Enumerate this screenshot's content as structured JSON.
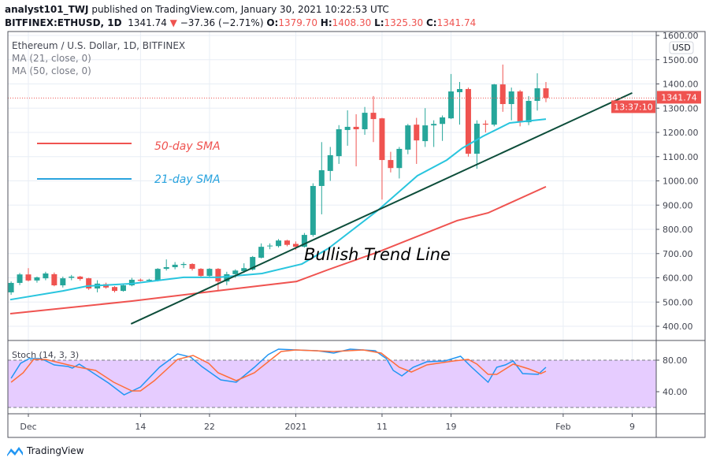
{
  "header": {
    "author": "analyst101_TWJ",
    "published": "published on TradingView.com, January 30, 2021 10:22:53 UTC",
    "symbol": "BITFINEX:ETHUSD, 1D",
    "last": "1341.74",
    "change": "−37.36 (−2.71%)",
    "o_label": "O:",
    "o": "1379.70",
    "h_label": "H:",
    "h": "1408.30",
    "l_label": "L:",
    "l": "1325.30",
    "c_label": "C:",
    "c": "1341.74"
  },
  "legend": {
    "title": "Ethereum / U.S. Dollar, 1D, BITFINEX",
    "ma1": "MA (21, close, 0)",
    "ma2": "MA (50, close, 0)",
    "sma50_label": "50-day SMA",
    "sma21_label": "21-day SMA",
    "stoch": "Stoch (14, 3, 3)"
  },
  "annotation": {
    "text": "Bullish Trend Line"
  },
  "price_axis": {
    "currency": "USD",
    "ticks": [
      "1600.00",
      "1500.00",
      "1400.00",
      "1300.00",
      "1200.00",
      "1100.00",
      "1000.00",
      "900.00",
      "800.00",
      "700.00",
      "600.00",
      "500.00",
      "400.00"
    ],
    "last_price": "1341.74",
    "countdown": "13:37:10"
  },
  "stoch_axis": {
    "ticks": [
      "80.00",
      "40.00"
    ]
  },
  "time_axis": {
    "ticks": [
      "Dec",
      "14",
      "22",
      "2021",
      "11",
      "19",
      "Feb",
      "9"
    ]
  },
  "footer": {
    "brand": "TradingView"
  },
  "colors": {
    "up": "#26a69a",
    "down": "#ef5350",
    "sma21": "#29c5de",
    "sma50": "#ef5350",
    "trend": "#0d4d3a",
    "k": "#2196f3",
    "d": "#ff6d3a",
    "band": "#e6ccff"
  },
  "chart_data": {
    "type": "candlestick",
    "title": "Ethereum / U.S. Dollar, 1D, BITFINEX",
    "first_candle_date": "2020-11-29",
    "x_unit": "days offset from 2020-12-01",
    "time_tick_days": [
      0,
      13,
      21,
      31,
      41,
      49,
      62,
      70
    ],
    "ylim": [
      380,
      1620
    ],
    "price_ticks": [
      1600,
      1500,
      1400,
      1300,
      1200,
      1100,
      1000,
      900,
      800,
      700,
      600,
      500,
      400
    ],
    "candles_ohlc": [
      [
        540,
        585,
        530,
        579
      ],
      [
        579,
        620,
        570,
        614
      ],
      [
        614,
        640,
        585,
        589
      ],
      [
        589,
        605,
        580,
        602
      ],
      [
        598,
        625,
        590,
        618
      ],
      [
        615,
        622,
        565,
        569
      ],
      [
        569,
        605,
        560,
        598
      ],
      [
        600,
        612,
        590,
        605
      ],
      [
        605,
        608,
        588,
        595
      ],
      [
        598,
        600,
        550,
        556
      ],
      [
        556,
        590,
        540,
        576
      ],
      [
        574,
        580,
        555,
        560
      ],
      [
        562,
        566,
        540,
        546
      ],
      [
        546,
        572,
        543,
        569
      ],
      [
        569,
        600,
        565,
        592
      ],
      [
        592,
        597,
        585,
        588
      ],
      [
        588,
        596,
        583,
        592
      ],
      [
        590,
        640,
        585,
        637
      ],
      [
        637,
        676,
        630,
        644
      ],
      [
        644,
        665,
        635,
        654
      ],
      [
        653,
        665,
        640,
        657
      ],
      [
        657,
        660,
        630,
        637
      ],
      [
        637,
        640,
        600,
        608
      ],
      [
        608,
        640,
        600,
        637
      ],
      [
        637,
        640,
        546,
        585
      ],
      [
        585,
        625,
        570,
        615
      ],
      [
        615,
        635,
        600,
        630
      ],
      [
        628,
        660,
        620,
        640
      ],
      [
        634,
        690,
        630,
        686
      ],
      [
        683,
        742,
        680,
        728
      ],
      [
        730,
        742,
        718,
        733
      ],
      [
        731,
        760,
        725,
        754
      ],
      [
        754,
        757,
        730,
        736
      ],
      [
        740,
        750,
        715,
        728
      ],
      [
        728,
        785,
        725,
        777
      ],
      [
        777,
        990,
        770,
        979
      ],
      [
        979,
        1160,
        862,
        1044
      ],
      [
        1041,
        1140,
        1000,
        1106
      ],
      [
        1102,
        1230,
        1070,
        1213
      ],
      [
        1210,
        1291,
        1145,
        1223
      ],
      [
        1223,
        1275,
        1060,
        1213
      ],
      [
        1213,
        1305,
        1190,
        1281
      ],
      [
        1281,
        1350,
        1160,
        1255
      ],
      [
        1258,
        1260,
        923,
        1086
      ],
      [
        1086,
        1120,
        1035,
        1053
      ],
      [
        1053,
        1140,
        1010,
        1132
      ],
      [
        1129,
        1235,
        1110,
        1229
      ],
      [
        1232,
        1260,
        1070,
        1167
      ],
      [
        1164,
        1300,
        1140,
        1229
      ],
      [
        1229,
        1250,
        1140,
        1235
      ],
      [
        1235,
        1270,
        1165,
        1262
      ],
      [
        1258,
        1441,
        1255,
        1369
      ],
      [
        1366,
        1408,
        1232,
        1379
      ],
      [
        1379,
        1385,
        1100,
        1112
      ],
      [
        1112,
        1250,
        1050,
        1236
      ],
      [
        1236,
        1250,
        1200,
        1232
      ],
      [
        1232,
        1400,
        1225,
        1398
      ],
      [
        1398,
        1480,
        1285,
        1317
      ],
      [
        1317,
        1385,
        1250,
        1369
      ],
      [
        1369,
        1375,
        1225,
        1242
      ],
      [
        1242,
        1350,
        1230,
        1330
      ],
      [
        1330,
        1444,
        1290,
        1382
      ],
      [
        1382,
        1408,
        1325,
        1342
      ]
    ],
    "sma21": [
      [
        -2.1,
        510
      ],
      [
        4,
        546
      ],
      [
        6.8,
        566
      ],
      [
        12,
        576
      ],
      [
        18,
        602
      ],
      [
        22,
        602
      ],
      [
        27.1,
        618
      ],
      [
        31.7,
        657
      ],
      [
        34.8,
        722
      ],
      [
        40.5,
        878
      ],
      [
        45.1,
        1021
      ],
      [
        48.5,
        1086
      ],
      [
        50.3,
        1135
      ],
      [
        52.7,
        1184
      ],
      [
        55.8,
        1239
      ],
      [
        60,
        1255
      ]
    ],
    "sma50": [
      [
        -2.1,
        452
      ],
      [
        12,
        504
      ],
      [
        21.1,
        543
      ],
      [
        31.1,
        585
      ],
      [
        34.8,
        634
      ],
      [
        40.5,
        706
      ],
      [
        49.7,
        836
      ],
      [
        53.3,
        868
      ],
      [
        60,
        976
      ]
    ],
    "trend_line": [
      [
        11.9,
        410
      ],
      [
        70,
        1363
      ]
    ],
    "stoch": {
      "ylim": [
        0,
        100
      ],
      "levels": [
        80,
        20
      ],
      "k": [
        [
          -2,
          57
        ],
        [
          -0.9,
          76
        ],
        [
          0.1,
          82
        ],
        [
          1.5,
          82
        ],
        [
          3,
          74
        ],
        [
          4.6,
          72
        ],
        [
          5.1,
          70
        ],
        [
          5.9,
          75
        ],
        [
          7.2,
          66
        ],
        [
          9.3,
          51
        ],
        [
          11.1,
          36
        ],
        [
          13,
          46
        ],
        [
          15.2,
          71
        ],
        [
          17.3,
          88
        ],
        [
          18.8,
          84
        ],
        [
          20.1,
          72
        ],
        [
          22.3,
          55
        ],
        [
          24.1,
          52
        ],
        [
          26.2,
          71
        ],
        [
          27.8,
          87
        ],
        [
          29,
          94
        ],
        [
          31,
          93
        ],
        [
          33.5,
          92
        ],
        [
          35.4,
          89
        ],
        [
          37.3,
          94
        ],
        [
          40.2,
          92
        ],
        [
          41.5,
          82
        ],
        [
          42.3,
          67
        ],
        [
          43.3,
          60
        ],
        [
          44.6,
          71
        ],
        [
          46.2,
          78
        ],
        [
          48.3,
          79
        ],
        [
          50.1,
          85
        ],
        [
          51.4,
          71
        ],
        [
          53.3,
          52
        ],
        [
          54.3,
          71
        ],
        [
          55.3,
          74
        ],
        [
          56.2,
          79
        ],
        [
          57.3,
          63
        ],
        [
          59.1,
          62
        ],
        [
          60,
          71
        ]
      ],
      "d": [
        [
          -2,
          52
        ],
        [
          -0.6,
          64
        ],
        [
          0.6,
          81
        ],
        [
          2,
          81
        ],
        [
          5.4,
          72
        ],
        [
          7.8,
          67
        ],
        [
          9.9,
          52
        ],
        [
          12,
          41
        ],
        [
          13,
          41
        ],
        [
          14.6,
          54
        ],
        [
          17.3,
          81
        ],
        [
          19.1,
          86
        ],
        [
          20.9,
          76
        ],
        [
          22,
          64
        ],
        [
          24.1,
          54
        ],
        [
          26.2,
          64
        ],
        [
          29.3,
          91
        ],
        [
          31,
          93
        ],
        [
          35.4,
          91
        ],
        [
          38.8,
          93
        ],
        [
          40.9,
          89
        ],
        [
          43,
          71
        ],
        [
          44.4,
          65
        ],
        [
          46.2,
          74
        ],
        [
          49.3,
          79
        ],
        [
          51,
          81
        ],
        [
          52,
          75
        ],
        [
          53.3,
          62
        ],
        [
          54.3,
          62
        ],
        [
          56.2,
          75
        ],
        [
          58,
          69
        ],
        [
          59.4,
          63
        ],
        [
          60,
          66
        ]
      ]
    }
  }
}
